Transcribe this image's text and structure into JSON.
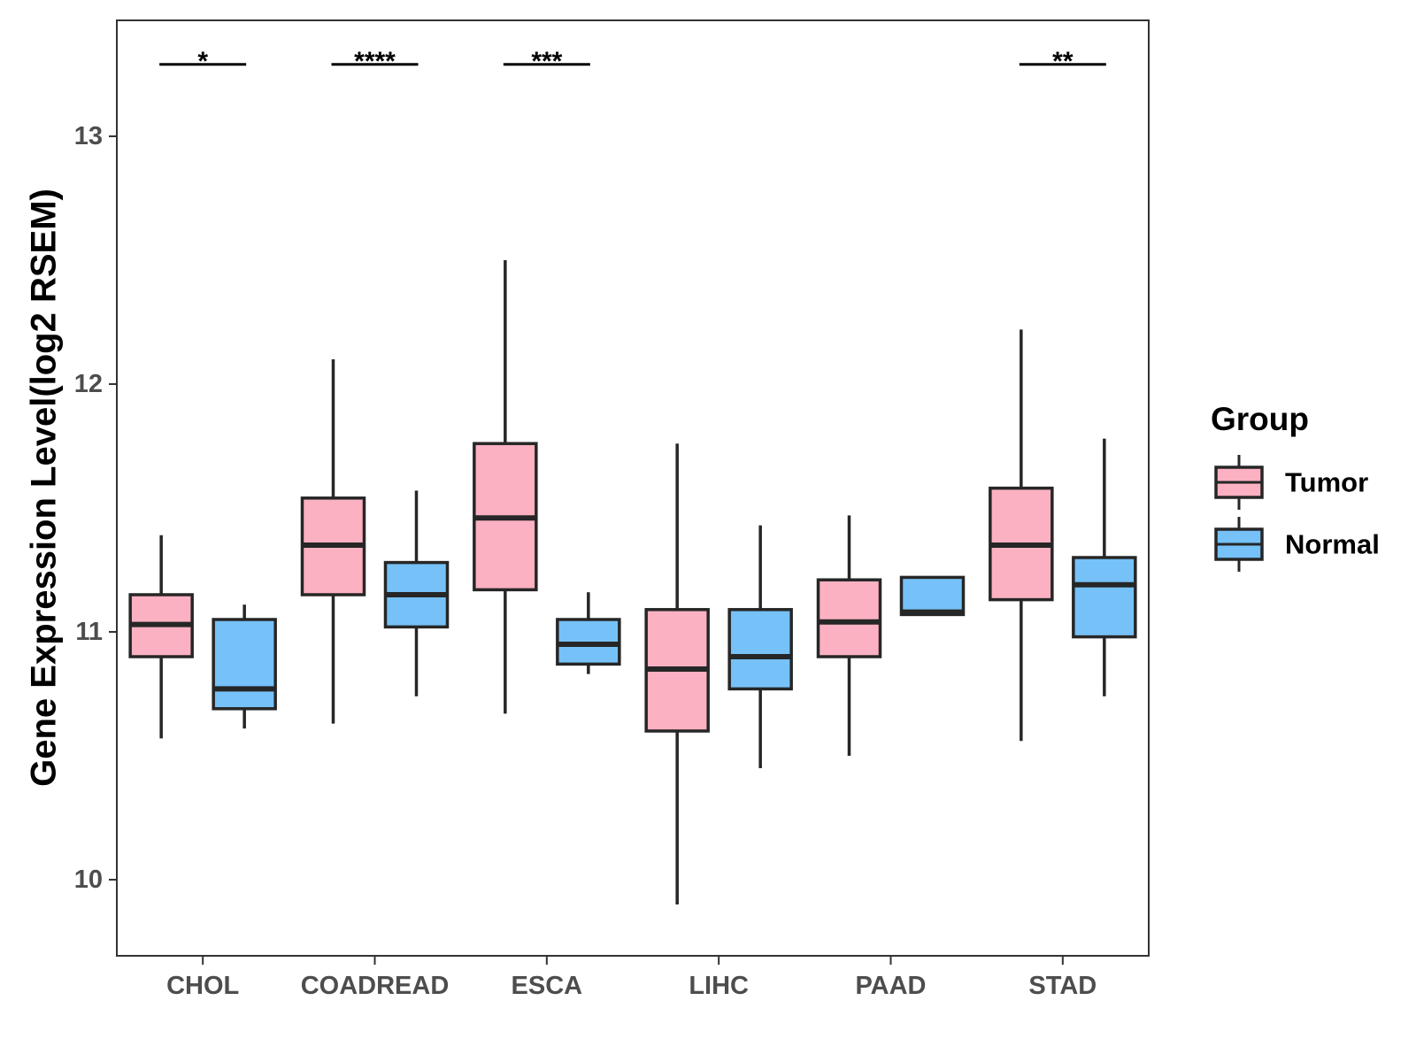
{
  "chart_data": {
    "type": "boxplot",
    "title": "",
    "xlabel": "",
    "ylabel": "Gene Expression Level(log2 RSEM)",
    "ylim": [
      9.7,
      13.5
    ],
    "yticks": [
      10,
      11,
      12,
      13
    ],
    "categories": [
      "CHOL",
      "COADREAD",
      "ESCA",
      "LIHC",
      "PAAD",
      "STAD"
    ],
    "legend": {
      "title": "Group",
      "position": "right",
      "entries": [
        {
          "name": "Tumor",
          "color": "#FBB1C2"
        },
        {
          "name": "Normal",
          "color": "#76C1F8"
        }
      ]
    },
    "series": [
      {
        "name": "Tumor",
        "color": "#FBB1C2",
        "boxes": [
          {
            "min": 10.57,
            "q1": 10.9,
            "median": 11.03,
            "q3": 11.15,
            "max": 11.39
          },
          {
            "min": 10.63,
            "q1": 11.15,
            "median": 11.35,
            "q3": 11.54,
            "max": 12.1
          },
          {
            "min": 10.67,
            "q1": 11.17,
            "median": 11.46,
            "q3": 11.76,
            "max": 12.5
          },
          {
            "min": 9.9,
            "q1": 10.6,
            "median": 10.85,
            "q3": 11.09,
            "max": 11.76
          },
          {
            "min": 10.5,
            "q1": 10.9,
            "median": 11.04,
            "q3": 11.21,
            "max": 11.47
          },
          {
            "min": 10.56,
            "q1": 11.13,
            "median": 11.35,
            "q3": 11.58,
            "max": 12.22
          }
        ]
      },
      {
        "name": "Normal",
        "color": "#76C1F8",
        "boxes": [
          {
            "min": 10.61,
            "q1": 10.69,
            "median": 10.77,
            "q3": 11.05,
            "max": 11.11
          },
          {
            "min": 10.74,
            "q1": 11.02,
            "median": 11.15,
            "q3": 11.28,
            "max": 11.57
          },
          {
            "min": 10.83,
            "q1": 10.87,
            "median": 10.95,
            "q3": 11.05,
            "max": 11.16
          },
          {
            "min": 10.45,
            "q1": 10.77,
            "median": 10.9,
            "q3": 11.09,
            "max": 11.43
          },
          {
            "min": 11.07,
            "q1": 11.07,
            "median": 11.08,
            "q3": 11.22,
            "max": 11.22
          },
          {
            "min": 10.74,
            "q1": 10.98,
            "median": 11.19,
            "q3": 11.3,
            "max": 11.78
          }
        ]
      }
    ],
    "significance": [
      {
        "category": "CHOL",
        "label": "*"
      },
      {
        "category": "COADREAD",
        "label": "****"
      },
      {
        "category": "ESCA",
        "label": "***"
      },
      {
        "category": "STAD",
        "label": "**"
      }
    ],
    "significance_y": 13.29
  }
}
